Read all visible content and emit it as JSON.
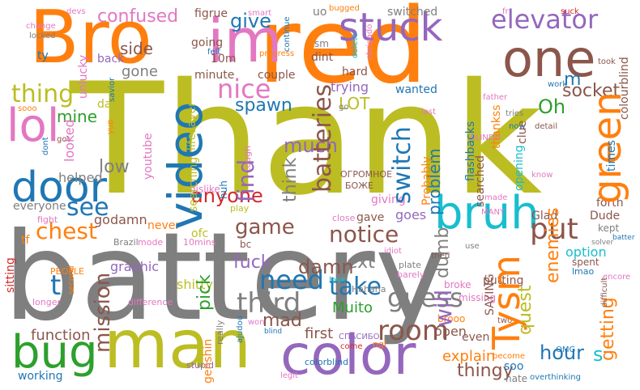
{
  "colors": {
    "orange": "#ff7f0e",
    "olive": "#bcbd22",
    "gray": "#7f7f7f",
    "purple": "#9467bd",
    "blue": "#1f77b4",
    "green": "#2ca02c",
    "cyan": "#17becf",
    "pink": "#e377c2",
    "brown": "#8c564b",
    "red": "#d62728"
  },
  "words": [
    {
      "text": "Thank",
      "color": "olive"
    },
    {
      "text": "battery",
      "color": "gray"
    },
    {
      "text": "red",
      "color": "orange"
    },
    {
      "text": "Bro",
      "color": "orange"
    },
    {
      "text": "man",
      "color": "olive"
    },
    {
      "text": "im",
      "color": "pink"
    },
    {
      "text": "color",
      "color": "purple"
    },
    {
      "text": "one",
      "color": "brown"
    },
    {
      "text": "stuck",
      "color": "purple"
    },
    {
      "text": "video",
      "color": "blue"
    },
    {
      "text": "lol",
      "color": "pink"
    },
    {
      "text": "door",
      "color": "blue"
    },
    {
      "text": "bug",
      "color": "green"
    },
    {
      "text": "bruh",
      "color": "cyan"
    },
    {
      "text": "green",
      "color": "orange"
    },
    {
      "text": "elevator",
      "color": "purple"
    },
    {
      "text": "Tysm",
      "color": "orange"
    },
    {
      "text": "batteries",
      "color": "brown"
    },
    {
      "text": "nice",
      "color": "pink"
    },
    {
      "text": "confused",
      "color": "pink"
    },
    {
      "text": "thing",
      "color": "olive"
    },
    {
      "text": "chest",
      "color": "orange"
    },
    {
      "text": "see",
      "color": "blue"
    },
    {
      "text": "find",
      "color": "purple"
    },
    {
      "text": "give",
      "color": "blue"
    },
    {
      "text": "notice",
      "color": "brown"
    },
    {
      "text": "put",
      "color": "brown"
    },
    {
      "text": "switch",
      "color": "blue"
    },
    {
      "text": "think",
      "color": "gray"
    },
    {
      "text": "game",
      "color": "brown"
    },
    {
      "text": "need",
      "color": "blue"
    },
    {
      "text": "third",
      "color": "gray"
    },
    {
      "text": "room",
      "color": "brown"
    },
    {
      "text": "will",
      "color": "purple"
    },
    {
      "text": "guess",
      "color": "gray"
    },
    {
      "text": "mission",
      "color": "brown"
    },
    {
      "text": "pick",
      "color": "green"
    },
    {
      "text": "take",
      "color": "blue"
    },
    {
      "text": "fuck",
      "color": "purple"
    },
    {
      "text": "anyone",
      "color": "red"
    },
    {
      "text": "next",
      "color": "gray"
    },
    {
      "text": "problem",
      "color": "blue"
    },
    {
      "text": "quest",
      "color": "olive"
    },
    {
      "text": "getting",
      "color": "orange"
    },
    {
      "text": "enemies",
      "color": "orange"
    },
    {
      "text": "socket",
      "color": "brown"
    },
    {
      "text": "spawn",
      "color": "blue"
    },
    {
      "text": "LOT",
      "color": "olive"
    },
    {
      "text": "Oh",
      "color": "green"
    },
    {
      "text": "much",
      "color": "purple"
    },
    {
      "text": "dumb",
      "color": "gray"
    },
    {
      "text": "damn",
      "color": "brown"
    },
    {
      "text": "mad",
      "color": "brown"
    },
    {
      "text": "first",
      "color": "brown"
    },
    {
      "text": "hour",
      "color": "blue"
    },
    {
      "text": "Muito",
      "color": "green"
    },
    {
      "text": "function",
      "color": "brown"
    },
    {
      "text": "thingy",
      "color": "brown"
    },
    {
      "text": "explain",
      "color": "orange"
    },
    {
      "text": "open",
      "color": "brown"
    },
    {
      "text": "goes",
      "color": "purple"
    },
    {
      "text": "s",
      "color": "cyan"
    },
    {
      "text": "t",
      "color": "blue"
    },
    {
      "text": "m",
      "color": "blue"
    },
    {
      "text": "low",
      "color": "gray"
    },
    {
      "text": "mine",
      "color": "green"
    },
    {
      "text": "side",
      "color": "brown"
    },
    {
      "text": "gone",
      "color": "gray"
    },
    {
      "text": "helped",
      "color": "gray"
    },
    {
      "text": "looked",
      "color": "pink"
    },
    {
      "text": "day",
      "color": "olive"
    },
    {
      "text": "lifesaver",
      "color": "olive"
    },
    {
      "text": "searching",
      "color": "olive"
    },
    {
      "text": "youtube",
      "color": "pink"
    },
    {
      "text": "godamn",
      "color": "brown"
    },
    {
      "text": "never",
      "color": "orange"
    },
    {
      "text": "ofc",
      "color": "olive"
    },
    {
      "text": "graphic",
      "color": "purple"
    },
    {
      "text": "shitty",
      "color": "olive"
    },
    {
      "text": "genshin",
      "color": "orange"
    },
    {
      "text": "working",
      "color": "blue"
    },
    {
      "text": "sitting",
      "color": "red"
    },
    {
      "text": "everyone",
      "color": "gray"
    },
    {
      "text": "tf",
      "color": "orange"
    },
    {
      "text": "Glad",
      "color": "brown"
    },
    {
      "text": "Dude",
      "color": "brown"
    },
    {
      "text": "forth",
      "color": "brown"
    },
    {
      "text": "option",
      "color": "cyan"
    },
    {
      "text": "times",
      "color": "blue"
    },
    {
      "text": "kept",
      "color": "gray"
    },
    {
      "text": "clue",
      "color": "brown"
    },
    {
      "text": "opening",
      "color": "cyan"
    },
    {
      "text": "searched",
      "color": "brown"
    },
    {
      "text": "Probably",
      "color": "orange"
    },
    {
      "text": "flashbacks",
      "color": "blue"
    },
    {
      "text": "thankss",
      "color": "orange"
    },
    {
      "text": "colourblind",
      "color": "brown"
    },
    {
      "text": "trying",
      "color": "purple"
    },
    {
      "text": "wanted",
      "color": "blue"
    },
    {
      "text": "hard",
      "color": "brown"
    },
    {
      "text": "dint",
      "color": "brown"
    },
    {
      "text": "couple",
      "color": "brown"
    },
    {
      "text": "minute",
      "color": "brown"
    },
    {
      "text": "10m",
      "color": "brown"
    },
    {
      "text": "back",
      "color": "purple"
    },
    {
      "text": "going",
      "color": "brown"
    },
    {
      "text": "figrue",
      "color": "brown"
    },
    {
      "text": "switched",
      "color": "gray"
    },
    {
      "text": "uo",
      "color": "gray"
    },
    {
      "text": "sm",
      "color": "gray"
    },
    {
      "text": "ty",
      "color": "blue"
    },
    {
      "text": "unlucky",
      "color": "pink"
    },
    {
      "text": "savior",
      "color": "blue"
    },
    {
      "text": "dudeee",
      "color": "brown"
    },
    {
      "text": "Thanksbro",
      "color": "brown"
    },
    {
      "text": "gave",
      "color": "brown"
    },
    {
      "text": "bc",
      "color": "brown"
    },
    {
      "text": "giving",
      "color": "pink"
    },
    {
      "text": "dislike",
      "color": "pink"
    },
    {
      "text": "huh",
      "color": "blue"
    },
    {
      "text": "tough",
      "color": "pink"
    },
    {
      "text": "SAYING",
      "color": "brown"
    },
    {
      "text": "putting",
      "color": "brown"
    },
    {
      "text": "spent",
      "color": "brown"
    },
    {
      "text": "lmao",
      "color": "blue"
    },
    {
      "text": "even",
      "color": "brown"
    },
    {
      "text": "soo",
      "color": "blue"
    },
    {
      "text": "hate",
      "color": "gray"
    },
    {
      "text": "brooo",
      "color": "orange"
    },
    {
      "text": "missing",
      "color": "pink"
    },
    {
      "text": "broke",
      "color": "pink"
    },
    {
      "text": "barely",
      "color": "pink"
    },
    {
      "text": "plate",
      "color": "gray"
    },
    {
      "text": "ngl",
      "color": "orange"
    },
    {
      "text": "colorblind",
      "color": "blue"
    },
    {
      "text": "stupid",
      "color": "purple"
    },
    {
      "text": "really",
      "color": "gray"
    },
    {
      "text": "ajudou",
      "color": "blue"
    },
    {
      "text": "difference",
      "color": "pink"
    },
    {
      "text": "Hahaha",
      "color": "gray"
    },
    {
      "text": "look",
      "color": "cyan"
    },
    {
      "text": "fight",
      "color": "pink"
    },
    {
      "text": "Brazil",
      "color": "gray"
    },
    {
      "text": "mode",
      "color": "pink"
    },
    {
      "text": "10mins",
      "color": "pink"
    },
    {
      "text": "close",
      "color": "pink"
    },
    {
      "text": "play",
      "color": "olive"
    },
    {
      "text": "ОГРОМНОЕ",
      "color": "brown"
    },
    {
      "text": "БОЖЕ",
      "color": "brown"
    },
    {
      "text": "MANY",
      "color": "pink"
    },
    {
      "text": "СПАСИБО",
      "color": "purple"
    },
    {
      "text": "come",
      "color": "red"
    },
    {
      "text": "legit",
      "color": "pink"
    },
    {
      "text": "blind",
      "color": "blue"
    },
    {
      "text": "second",
      "color": "orange"
    },
    {
      "text": "PEOPLE",
      "color": "orange"
    },
    {
      "text": "longer",
      "color": "pink"
    },
    {
      "text": "yup",
      "color": "orange"
    },
    {
      "text": "dont",
      "color": "blue"
    },
    {
      "text": "got",
      "color": "brown"
    },
    {
      "text": "sooo",
      "color": "orange"
    },
    {
      "text": "change",
      "color": "pink"
    },
    {
      "text": "locked",
      "color": "gray"
    },
    {
      "text": "devs",
      "color": "pink"
    },
    {
      "text": "smart",
      "color": "pink"
    },
    {
      "text": "felt",
      "color": "blue"
    },
    {
      "text": "progress",
      "color": "orange"
    },
    {
      "text": "continue",
      "color": "blue"
    },
    {
      "text": "bugged",
      "color": "orange"
    },
    {
      "text": "obrigado",
      "color": "pink"
    },
    {
      "text": "delete",
      "color": "cyan"
    },
    {
      "text": "father",
      "color": "pink"
    },
    {
      "text": "fr",
      "color": "pink"
    },
    {
      "text": "suck",
      "color": "red"
    },
    {
      "text": "took",
      "color": "brown"
    },
    {
      "text": "work",
      "color": "blue"
    },
    {
      "text": "tries",
      "color": "gray"
    },
    {
      "text": "detail",
      "color": "brown"
    },
    {
      "text": "now",
      "color": "blue"
    },
    {
      "text": "last",
      "color": "pink"
    },
    {
      "text": "go",
      "color": "gray"
    },
    {
      "text": "BLINDD",
      "color": "pink"
    },
    {
      "text": "know",
      "color": "pink"
    },
    {
      "text": "made",
      "color": "pink"
    },
    {
      "text": "solver",
      "color": "gray"
    },
    {
      "text": "batter",
      "color": "blue"
    },
    {
      "text": "use",
      "color": "gray"
    },
    {
      "text": "idiot",
      "color": "pink"
    },
    {
      "text": "tried",
      "color": "brown"
    },
    {
      "text": "won",
      "color": "pink"
    },
    {
      "text": "two",
      "color": "brown"
    },
    {
      "text": "difficult",
      "color": "brown"
    },
    {
      "text": "encore",
      "color": "pink"
    },
    {
      "text": "OMG",
      "color": "blue"
    },
    {
      "text": "become",
      "color": "orange"
    },
    {
      "text": "overthinking",
      "color": "blue"
    }
  ]
}
